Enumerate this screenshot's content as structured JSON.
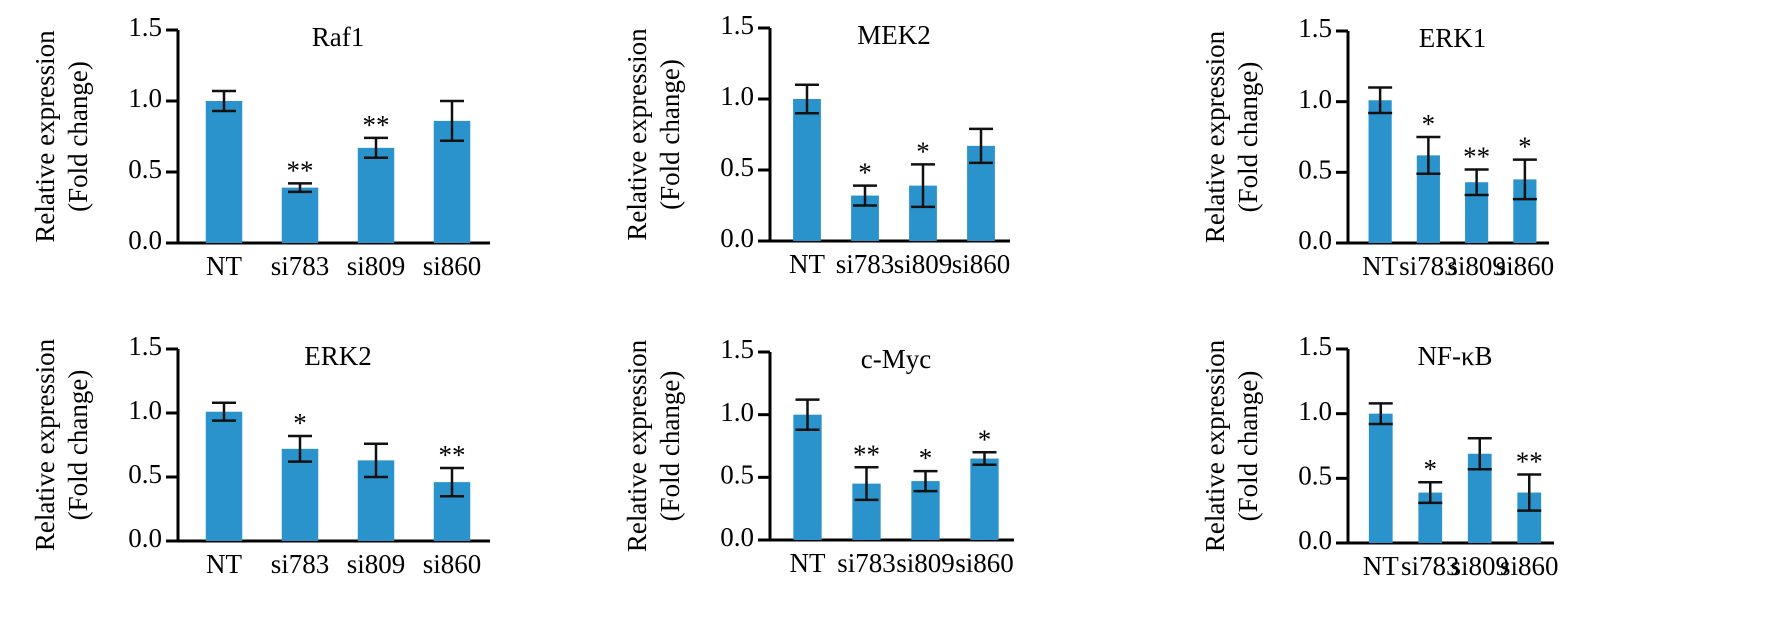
{
  "chart_data": [
    {
      "type": "bar",
      "title": "Raf1",
      "categories": [
        "NT",
        "si783",
        "si809",
        "si860"
      ],
      "values": [
        1.0,
        0.39,
        0.67,
        0.86
      ],
      "errors": [
        0.07,
        0.03,
        0.07,
        0.14
      ],
      "significance": [
        "",
        "**",
        "**",
        ""
      ],
      "xlabel": "",
      "ylabel": [
        "Relative expression",
        "(Fold change)"
      ],
      "ylim": [
        0,
        1.5
      ],
      "yticks": [
        "0.0",
        "0.5",
        "1.0",
        "1.5"
      ],
      "color": "#2b93cc"
    },
    {
      "type": "bar",
      "title": "MEK2",
      "categories": [
        "NT",
        "si783",
        "si809",
        "si860"
      ],
      "values": [
        1.0,
        0.32,
        0.39,
        0.67
      ],
      "errors": [
        0.1,
        0.07,
        0.15,
        0.12
      ],
      "significance": [
        "",
        "*",
        "*",
        ""
      ],
      "xlabel": "",
      "ylabel": [
        "Relative expression",
        "(Fold change)"
      ],
      "ylim": [
        0,
        1.5
      ],
      "yticks": [
        "0.0",
        "0.5",
        "1.0",
        "1.5"
      ],
      "color": "#2b93cc"
    },
    {
      "type": "bar",
      "title": "ERK1",
      "categories": [
        "NT",
        "si783",
        "si809",
        "si860"
      ],
      "values": [
        1.01,
        0.62,
        0.43,
        0.45
      ],
      "errors": [
        0.09,
        0.13,
        0.09,
        0.14
      ],
      "significance": [
        "",
        "*",
        "**",
        "*"
      ],
      "xlabel": "",
      "ylabel": [
        "Relative expression",
        "(Fold change)"
      ],
      "ylim": [
        0,
        1.5
      ],
      "yticks": [
        "0.0",
        "0.5",
        "1.0",
        "1.5"
      ],
      "color": "#2b93cc"
    },
    {
      "type": "bar",
      "title": "ERK2",
      "categories": [
        "NT",
        "si783",
        "si809",
        "si860"
      ],
      "values": [
        1.01,
        0.72,
        0.63,
        0.46
      ],
      "errors": [
        0.07,
        0.1,
        0.13,
        0.11
      ],
      "significance": [
        "",
        "*",
        "",
        "**"
      ],
      "xlabel": "",
      "ylabel": [
        "Relative expression",
        "(Fold change)"
      ],
      "ylim": [
        0,
        1.5
      ],
      "yticks": [
        "0.0",
        "0.5",
        "1.0",
        "1.5"
      ],
      "color": "#2b93cc"
    },
    {
      "type": "bar",
      "title": "c-Myc",
      "categories": [
        "NT",
        "si783",
        "si809",
        "si860"
      ],
      "values": [
        1.0,
        0.45,
        0.47,
        0.65
      ],
      "errors": [
        0.12,
        0.13,
        0.08,
        0.05
      ],
      "significance": [
        "",
        "**",
        "*",
        "*"
      ],
      "xlabel": "",
      "ylabel": [
        "Relative expression",
        "(Fold change)"
      ],
      "ylim": [
        0,
        1.5
      ],
      "yticks": [
        "0.0",
        "0.5",
        "1.0",
        "1.5"
      ],
      "color": "#2b93cc"
    },
    {
      "type": "bar",
      "title": "NF-κB",
      "categories": [
        "NT",
        "si783",
        "si809",
        "si860"
      ],
      "values": [
        1.0,
        0.39,
        0.69,
        0.39
      ],
      "errors": [
        0.08,
        0.08,
        0.12,
        0.14
      ],
      "significance": [
        "",
        "*",
        "",
        "**"
      ],
      "xlabel": "",
      "ylabel": [
        "Relative expression",
        "(Fold change)"
      ],
      "ylim": [
        0,
        1.5
      ],
      "yticks": [
        "0.0",
        "0.5",
        "1.0",
        "1.5"
      ],
      "color": "#2b93cc"
    }
  ]
}
